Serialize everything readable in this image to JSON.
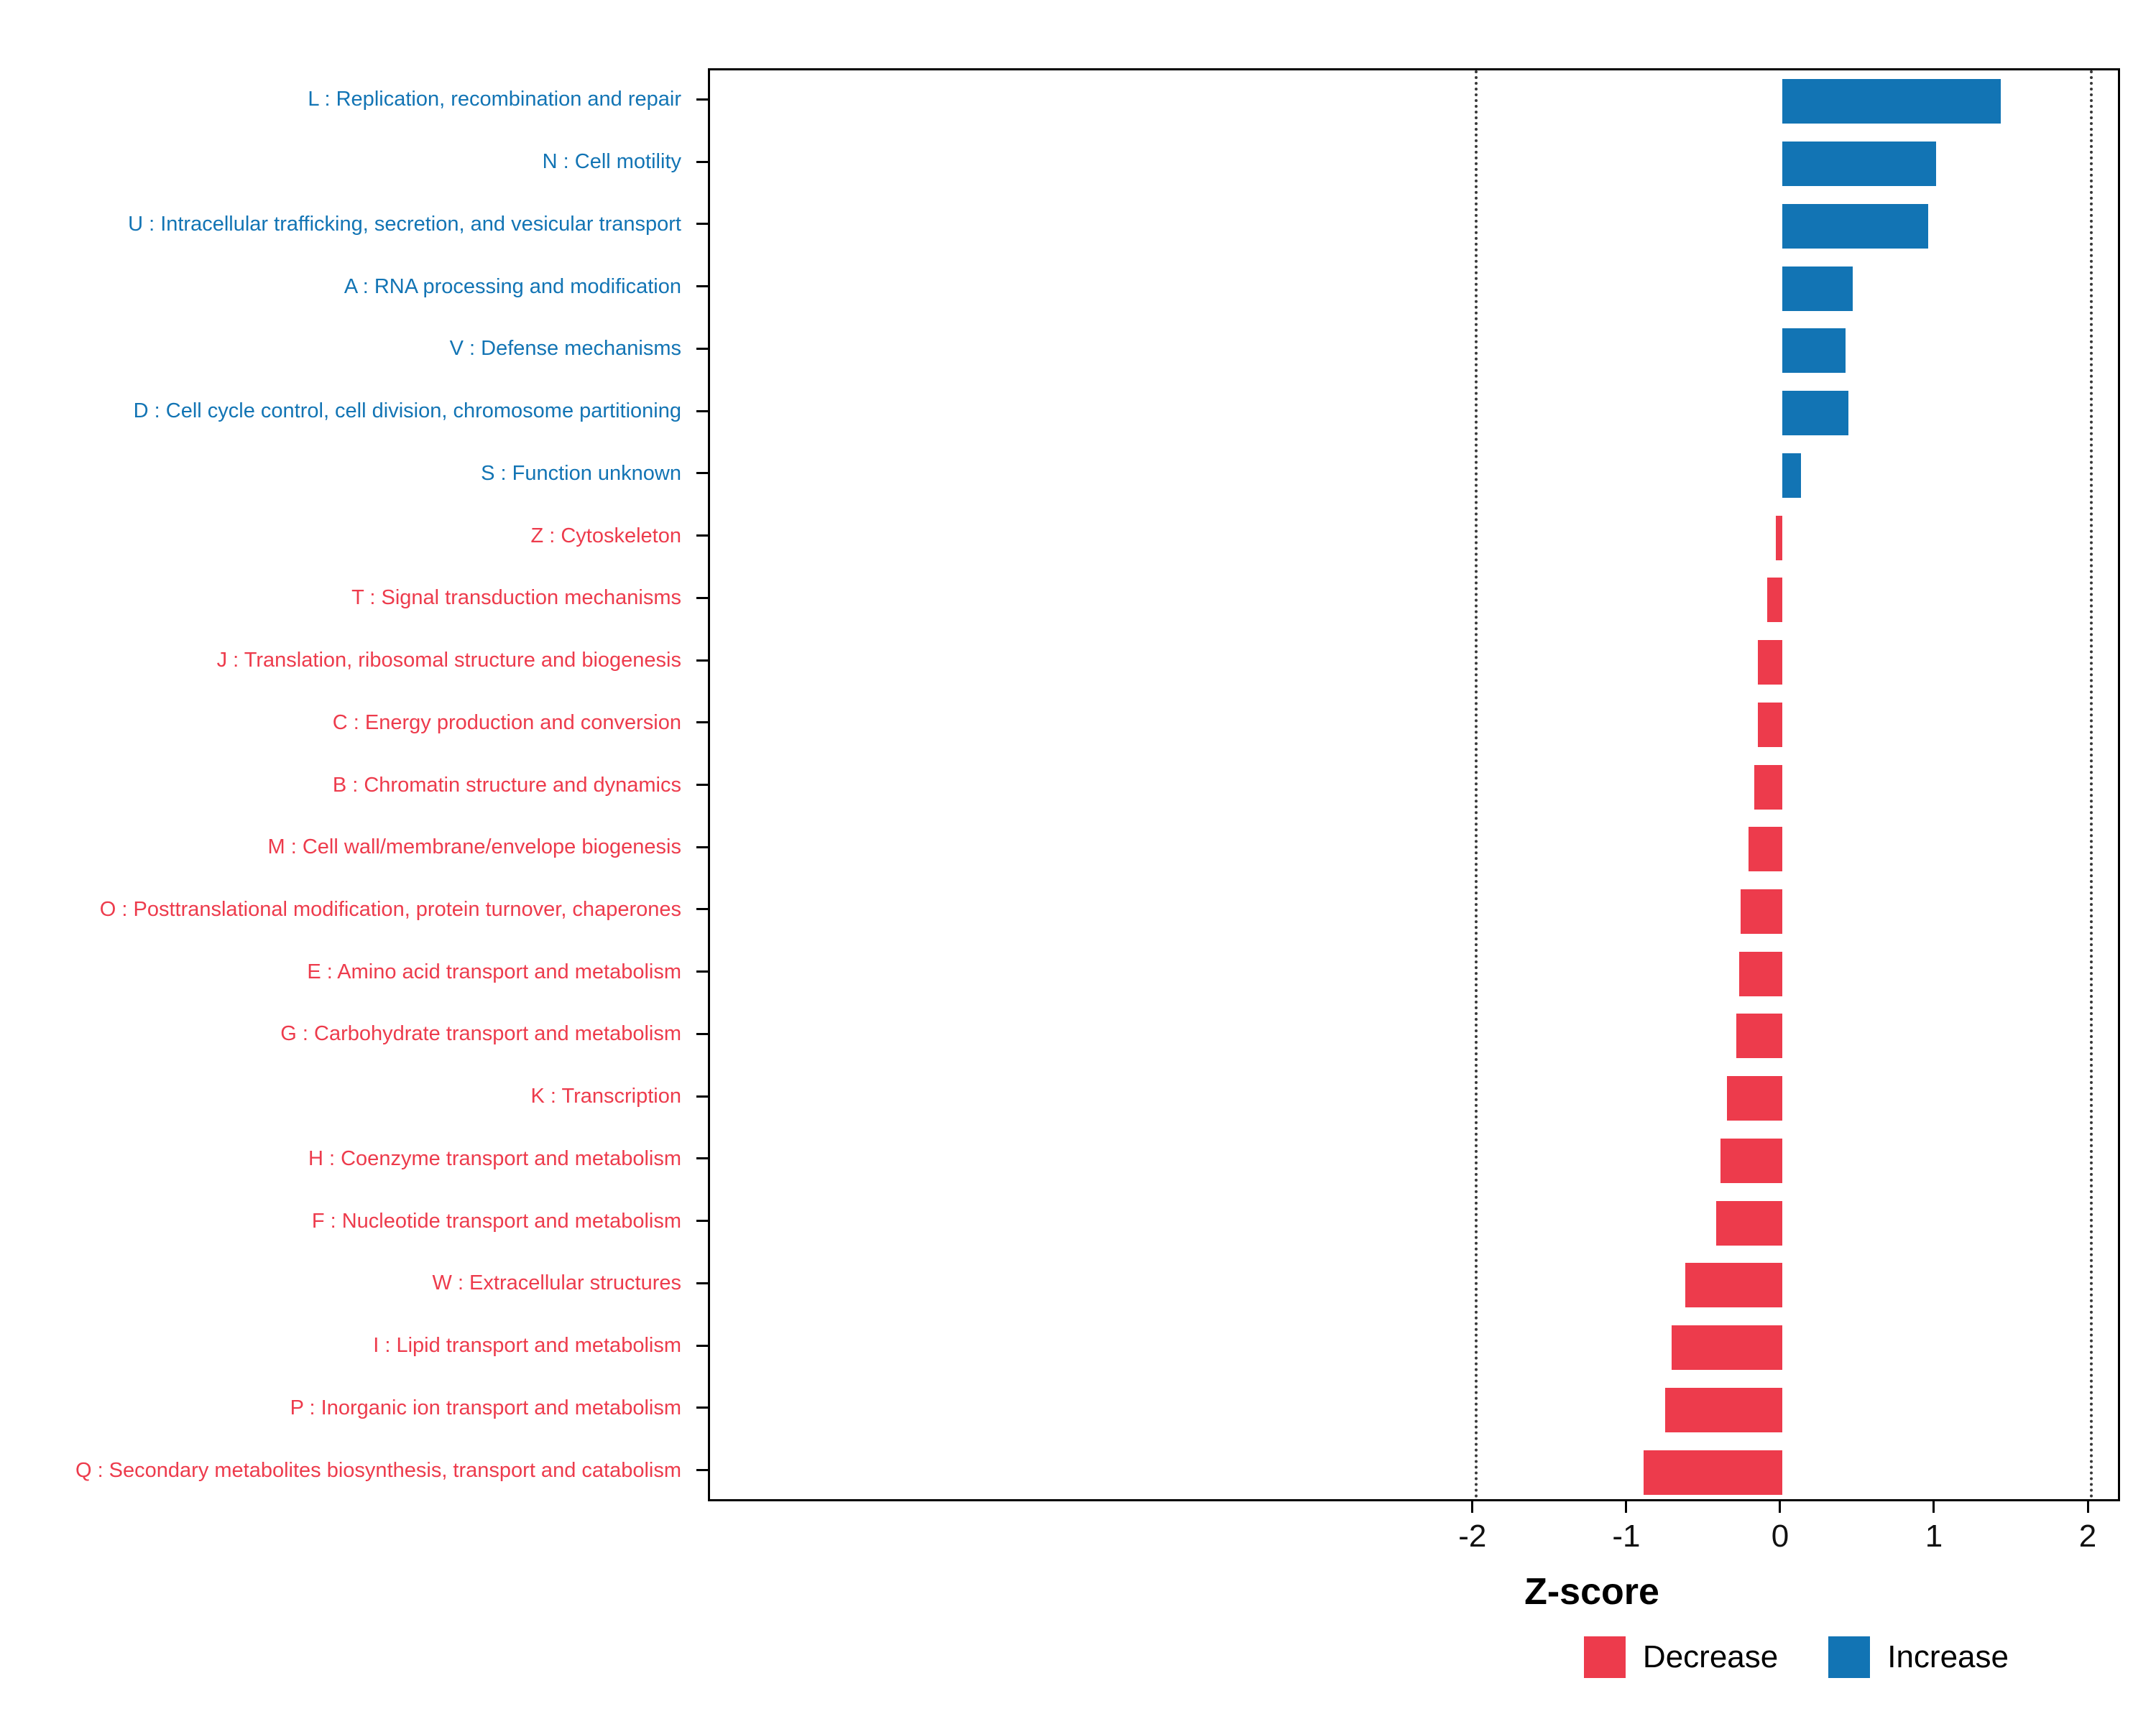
{
  "chart_data": {
    "type": "bar",
    "orientation": "horizontal",
    "title": "",
    "xlabel": "Z-score",
    "ylabel": "",
    "xlim": [
      -6.97,
      2.21
    ],
    "x_ticks": [
      -2,
      -1,
      0,
      1,
      2
    ],
    "reference_lines": [
      -2,
      2
    ],
    "grid": "dotted-vertical-at-reference-lines",
    "legend_position": "bottom-right",
    "colors": {
      "Decrease": "#ED3B4C",
      "Increase": "#1274B4"
    },
    "categories": [
      {
        "code": "L",
        "label": "L : Replication, recombination and repair",
        "value": 1.42,
        "group": "Increase"
      },
      {
        "code": "N",
        "label": "N : Cell motility",
        "value": 1.0,
        "group": "Increase"
      },
      {
        "code": "U",
        "label": "U : Intracellular trafficking, secretion, and vesicular transport",
        "value": 0.95,
        "group": "Increase"
      },
      {
        "code": "A",
        "label": "A : RNA processing and modification",
        "value": 0.46,
        "group": "Increase"
      },
      {
        "code": "V",
        "label": "V : Defense mechanisms",
        "value": 0.41,
        "group": "Increase"
      },
      {
        "code": "D",
        "label": "D : Cell cycle control, cell division, chromosome partitioning",
        "value": 0.43,
        "group": "Increase"
      },
      {
        "code": "S",
        "label": "S : Function unknown",
        "value": 0.12,
        "group": "Increase"
      },
      {
        "code": "Z",
        "label": "Z : Cytoskeleton",
        "value": -0.04,
        "group": "Decrease"
      },
      {
        "code": "T",
        "label": "T : Signal transduction mechanisms",
        "value": -0.1,
        "group": "Decrease"
      },
      {
        "code": "J",
        "label": "J : Translation, ribosomal structure and biogenesis",
        "value": -0.16,
        "group": "Decrease"
      },
      {
        "code": "C",
        "label": "C : Energy production and conversion",
        "value": -0.16,
        "group": "Decrease"
      },
      {
        "code": "B",
        "label": "B : Chromatin structure and dynamics",
        "value": -0.18,
        "group": "Decrease"
      },
      {
        "code": "M",
        "label": "M : Cell wall/membrane/envelope biogenesis",
        "value": -0.22,
        "group": "Decrease"
      },
      {
        "code": "O",
        "label": "O : Posttranslational modification, protein turnover, chaperones",
        "value": -0.27,
        "group": "Decrease"
      },
      {
        "code": "E",
        "label": "E : Amino acid transport and metabolism",
        "value": -0.28,
        "group": "Decrease"
      },
      {
        "code": "G",
        "label": "G : Carbohydrate transport and metabolism",
        "value": -0.3,
        "group": "Decrease"
      },
      {
        "code": "K",
        "label": "K : Transcription",
        "value": -0.36,
        "group": "Decrease"
      },
      {
        "code": "H",
        "label": "H : Coenzyme transport and metabolism",
        "value": -0.4,
        "group": "Decrease"
      },
      {
        "code": "F",
        "label": "F : Nucleotide transport and metabolism",
        "value": -0.43,
        "group": "Decrease"
      },
      {
        "code": "W",
        "label": "W : Extracellular structures",
        "value": -0.63,
        "group": "Decrease"
      },
      {
        "code": "I",
        "label": "I : Lipid transport and metabolism",
        "value": -0.72,
        "group": "Decrease"
      },
      {
        "code": "P",
        "label": "P : Inorganic ion transport and metabolism",
        "value": -0.76,
        "group": "Decrease"
      },
      {
        "code": "Q",
        "label": "Q : Secondary metabolites biosynthesis, transport and catabolism",
        "value": -0.9,
        "group": "Decrease"
      }
    ],
    "legend": [
      {
        "label": "Decrease",
        "color": "#ED3B4C"
      },
      {
        "label": "Increase",
        "color": "#1274B4"
      }
    ]
  }
}
